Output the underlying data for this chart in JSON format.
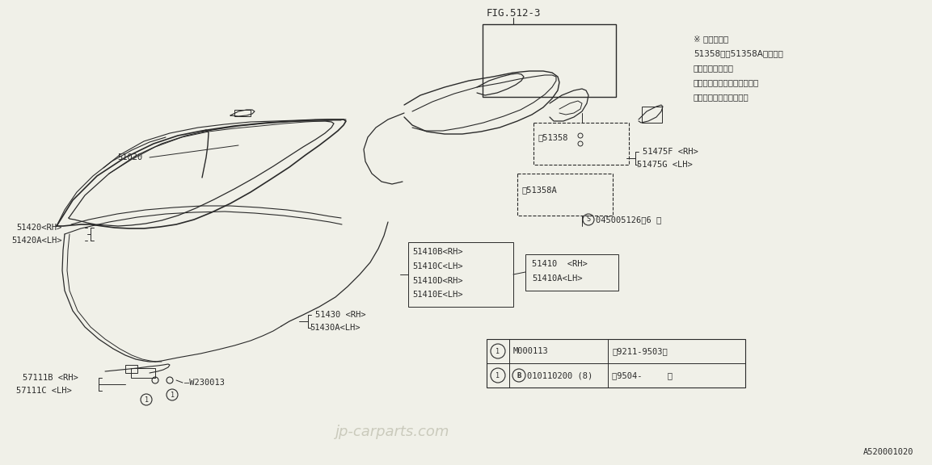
{
  "bg_color": "#f0f0e8",
  "line_color": "#2a2a2a",
  "title": "FIG.512-3",
  "watermark": "jp-carparts.com",
  "part_id": "A520001020",
  "fig_w": 1153,
  "fig_h": 576,
  "japanese_note_lines": [
    "※ 部品コード",
    "51358及的51358Aの部品は",
    "廃止になりました",
    "使用しなくても機能上問題は",
    "無い為補償いたしません"
  ]
}
